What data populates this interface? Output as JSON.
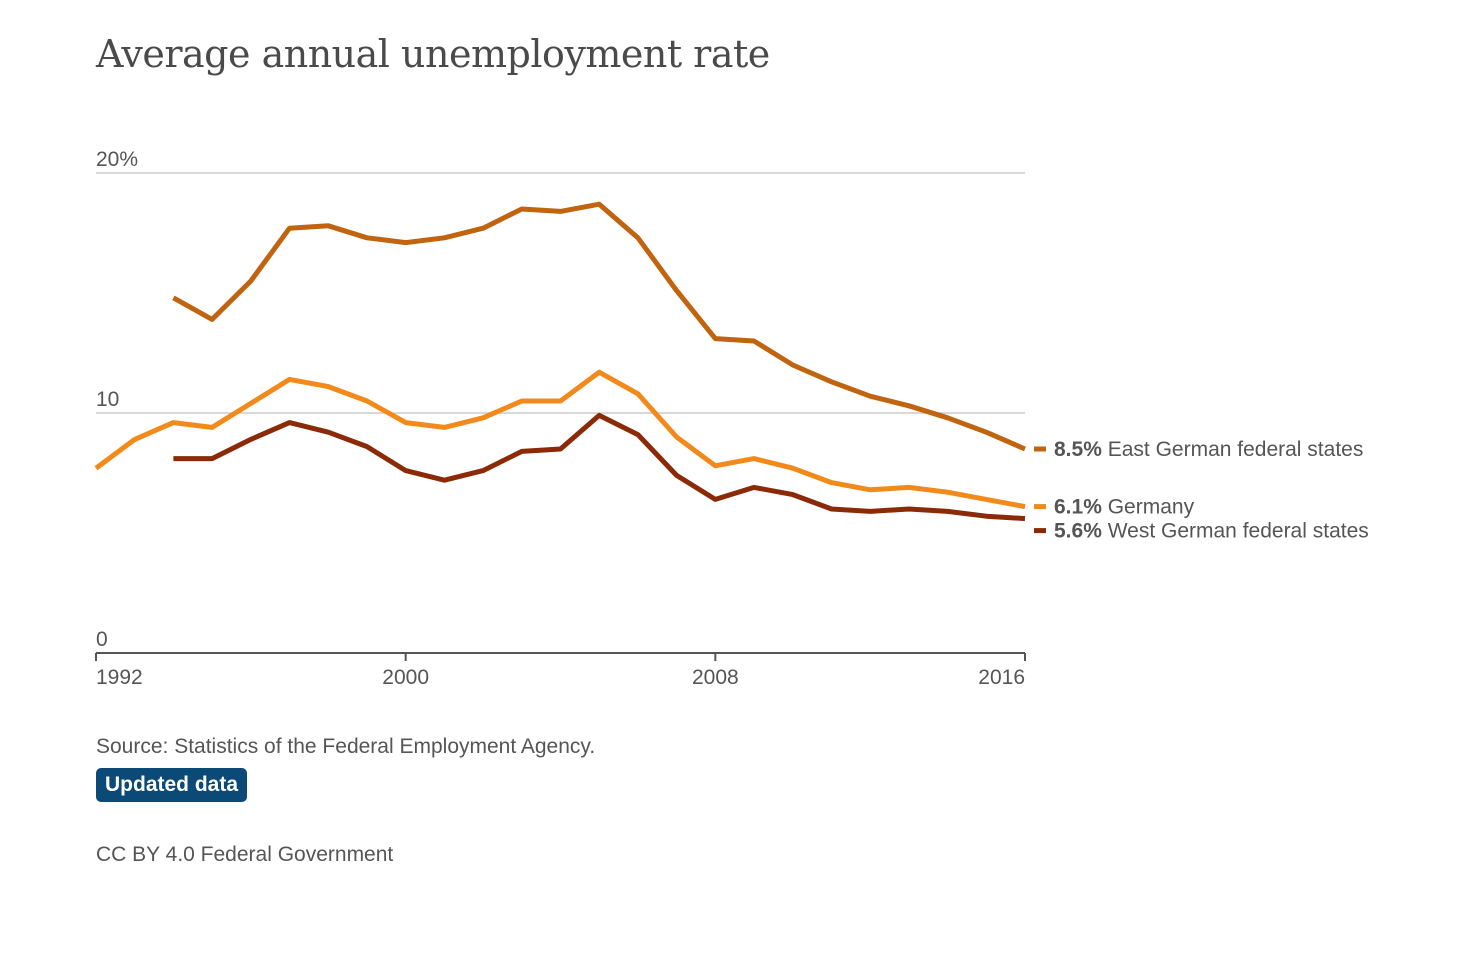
{
  "chart_title": "Average annual unemployment rate",
  "source_text": "Source: Statistics of the Federal Employment Agency.",
  "updated_button_label": "Updated data",
  "license_text": "CC BY 4.0 Federal Government",
  "chart_data": {
    "type": "line",
    "title": "Average annual unemployment rate",
    "xlabel": "",
    "ylabel": "",
    "xlim": [
      1992,
      2016
    ],
    "ylim": [
      0,
      20
    ],
    "x_ticks": [
      1992,
      2000,
      2008,
      2016
    ],
    "y_ticks": [
      {
        "value": 0,
        "label": "0"
      },
      {
        "value": 10,
        "label": "10"
      },
      {
        "value": 20,
        "label": "20%"
      }
    ],
    "grid": "horizontal",
    "legend": "end-of-line labels (right)",
    "series": [
      {
        "name": "East German federal states",
        "end_label_value": "8.5%",
        "color": "#c0640f",
        "x": [
          1994,
          1995,
          1996,
          1997,
          1998,
          1999,
          2000,
          2001,
          2002,
          2003,
          2004,
          2005,
          2006,
          2007,
          2008,
          2009,
          2010,
          2011,
          2012,
          2013,
          2014,
          2015,
          2016
        ],
        "values": [
          14.8,
          13.9,
          15.5,
          17.7,
          17.8,
          17.3,
          17.1,
          17.3,
          17.7,
          18.5,
          18.4,
          18.7,
          17.3,
          15.1,
          13.1,
          13.0,
          12.0,
          11.3,
          10.7,
          10.3,
          9.8,
          9.2,
          8.5
        ]
      },
      {
        "name": "Germany",
        "end_label_value": "6.1%",
        "color": "#f28a1b",
        "x": [
          1992,
          1993,
          1994,
          1995,
          1996,
          1997,
          1998,
          1999,
          2000,
          2001,
          2002,
          2003,
          2004,
          2005,
          2006,
          2007,
          2008,
          2009,
          2010,
          2011,
          2012,
          2013,
          2014,
          2015,
          2016
        ],
        "values": [
          7.7,
          8.9,
          9.6,
          9.4,
          10.4,
          11.4,
          11.1,
          10.5,
          9.6,
          9.4,
          9.8,
          10.5,
          10.5,
          11.7,
          10.8,
          9.0,
          7.8,
          8.1,
          7.7,
          7.1,
          6.8,
          6.9,
          6.7,
          6.4,
          6.1
        ]
      },
      {
        "name": "West German federal states",
        "end_label_value": "5.6%",
        "color": "#8b2a06",
        "x": [
          1994,
          1995,
          1996,
          1997,
          1998,
          1999,
          2000,
          2001,
          2002,
          2003,
          2004,
          2005,
          2006,
          2007,
          2008,
          2009,
          2010,
          2011,
          2012,
          2013,
          2014,
          2015,
          2016
        ],
        "values": [
          8.1,
          8.1,
          8.9,
          9.6,
          9.2,
          8.6,
          7.6,
          7.2,
          7.6,
          8.4,
          8.5,
          9.9,
          9.1,
          7.4,
          6.4,
          6.9,
          6.6,
          6.0,
          5.9,
          6.0,
          5.9,
          5.7,
          5.6
        ]
      }
    ]
  }
}
